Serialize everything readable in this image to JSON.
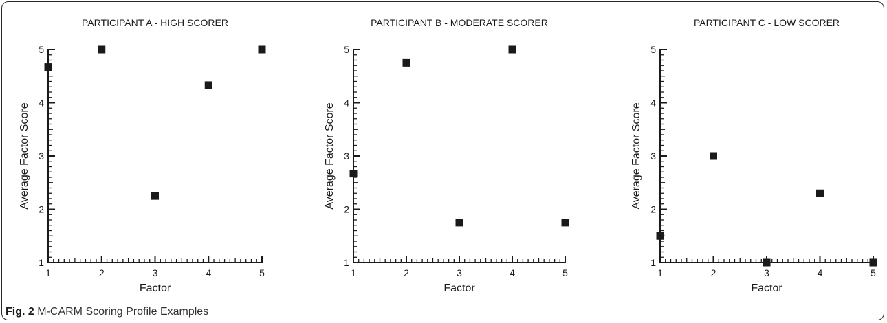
{
  "figure": {
    "label": "Fig. 2",
    "title": "M-CARM Scoring Profile Examples"
  },
  "colors": {
    "marker": "#1a1a1a",
    "axis": "#1a1a1a",
    "text": "#1a1a1a"
  },
  "chart_data": [
    {
      "type": "scatter",
      "title": "PARTICIPANT A - HIGH SCORER",
      "xlabel": "Factor",
      "ylabel": "Average Factor Score",
      "xlim": [
        1,
        5
      ],
      "ylim": [
        1,
        5
      ],
      "xticks": [
        "1",
        "2",
        "3",
        "4",
        "5"
      ],
      "yticks": [
        "1",
        "2",
        "3",
        "4",
        "5"
      ],
      "grid": false,
      "x": [
        1,
        2,
        3,
        4,
        5
      ],
      "y": [
        4.67,
        5.0,
        2.25,
        4.33,
        5.0
      ]
    },
    {
      "type": "scatter",
      "title": "PARTICIPANT B - MODERATE SCORER",
      "xlabel": "Factor",
      "ylabel": "Average Factor Score",
      "xlim": [
        1,
        5
      ],
      "ylim": [
        1,
        5
      ],
      "xticks": [
        "1",
        "2",
        "3",
        "4",
        "5"
      ],
      "yticks": [
        "1",
        "2",
        "3",
        "4",
        "5"
      ],
      "grid": false,
      "x": [
        1,
        2,
        3,
        4,
        5
      ],
      "y": [
        2.67,
        4.75,
        1.75,
        5.0,
        1.75
      ]
    },
    {
      "type": "scatter",
      "title": "PARTICIPANT C - LOW SCORER",
      "xlabel": "Factor",
      "ylabel": "Average Factor Score",
      "xlim": [
        1,
        5
      ],
      "ylim": [
        1,
        5
      ],
      "xticks": [
        "1",
        "2",
        "3",
        "4",
        "5"
      ],
      "yticks": [
        "1",
        "2",
        "3",
        "4",
        "5"
      ],
      "grid": false,
      "x": [
        1,
        2,
        3,
        4,
        5
      ],
      "y": [
        1.5,
        3.0,
        1.0,
        2.3,
        1.0
      ]
    }
  ]
}
